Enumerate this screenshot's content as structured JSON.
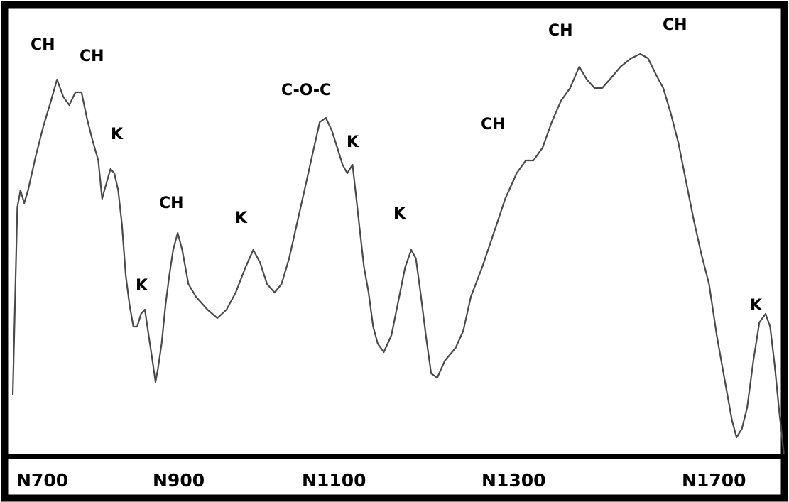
{
  "chart_data": {
    "type": "line",
    "title": "",
    "xlabel": "",
    "ylabel": "",
    "grid": false,
    "legend": "none",
    "x_ticks": [
      "N700",
      "N900",
      "N1100",
      "N1300",
      "N1700"
    ],
    "peak_labels": [
      "CH",
      "CH",
      "K",
      "K",
      "CH",
      "K",
      "C-O-C",
      "K",
      "K",
      "CH",
      "CH",
      "CH",
      "K"
    ],
    "line_color": "#4a4a4a",
    "series": [
      {
        "points": [
          [
            0.0,
            0.14
          ],
          [
            0.006,
            0.58
          ],
          [
            0.01,
            0.62
          ],
          [
            0.015,
            0.59
          ],
          [
            0.02,
            0.62
          ],
          [
            0.03,
            0.7
          ],
          [
            0.04,
            0.77
          ],
          [
            0.05,
            0.83
          ],
          [
            0.058,
            0.88
          ],
          [
            0.066,
            0.84
          ],
          [
            0.074,
            0.82
          ],
          [
            0.082,
            0.85
          ],
          [
            0.09,
            0.85
          ],
          [
            0.097,
            0.79
          ],
          [
            0.104,
            0.74
          ],
          [
            0.112,
            0.69
          ],
          [
            0.117,
            0.6
          ],
          [
            0.12,
            0.62
          ],
          [
            0.128,
            0.67
          ],
          [
            0.133,
            0.66
          ],
          [
            0.138,
            0.62
          ],
          [
            0.143,
            0.54
          ],
          [
            0.148,
            0.42
          ],
          [
            0.153,
            0.35
          ],
          [
            0.158,
            0.3
          ],
          [
            0.163,
            0.3
          ],
          [
            0.168,
            0.33
          ],
          [
            0.173,
            0.34
          ],
          [
            0.178,
            0.28
          ],
          [
            0.183,
            0.22
          ],
          [
            0.187,
            0.17
          ],
          [
            0.19,
            0.2
          ],
          [
            0.195,
            0.26
          ],
          [
            0.2,
            0.35
          ],
          [
            0.205,
            0.42
          ],
          [
            0.21,
            0.48
          ],
          [
            0.216,
            0.52
          ],
          [
            0.222,
            0.48
          ],
          [
            0.23,
            0.4
          ],
          [
            0.24,
            0.37
          ],
          [
            0.255,
            0.34
          ],
          [
            0.268,
            0.32
          ],
          [
            0.28,
            0.34
          ],
          [
            0.292,
            0.38
          ],
          [
            0.305,
            0.44
          ],
          [
            0.315,
            0.48
          ],
          [
            0.324,
            0.45
          ],
          [
            0.333,
            0.4
          ],
          [
            0.343,
            0.38
          ],
          [
            0.352,
            0.4
          ],
          [
            0.362,
            0.46
          ],
          [
            0.372,
            0.54
          ],
          [
            0.382,
            0.62
          ],
          [
            0.392,
            0.7
          ],
          [
            0.402,
            0.78
          ],
          [
            0.41,
            0.79
          ],
          [
            0.418,
            0.76
          ],
          [
            0.425,
            0.72
          ],
          [
            0.432,
            0.68
          ],
          [
            0.438,
            0.66
          ],
          [
            0.445,
            0.68
          ],
          [
            0.45,
            0.6
          ],
          [
            0.455,
            0.52
          ],
          [
            0.46,
            0.44
          ],
          [
            0.466,
            0.38
          ],
          [
            0.472,
            0.3
          ],
          [
            0.478,
            0.26
          ],
          [
            0.486,
            0.24
          ],
          [
            0.496,
            0.28
          ],
          [
            0.505,
            0.36
          ],
          [
            0.514,
            0.44
          ],
          [
            0.522,
            0.48
          ],
          [
            0.528,
            0.46
          ],
          [
            0.534,
            0.38
          ],
          [
            0.541,
            0.28
          ],
          [
            0.548,
            0.19
          ],
          [
            0.556,
            0.18
          ],
          [
            0.566,
            0.22
          ],
          [
            0.58,
            0.25
          ],
          [
            0.59,
            0.29
          ],
          [
            0.6,
            0.37
          ],
          [
            0.615,
            0.44
          ],
          [
            0.63,
            0.52
          ],
          [
            0.645,
            0.6
          ],
          [
            0.66,
            0.66
          ],
          [
            0.672,
            0.69
          ],
          [
            0.682,
            0.69
          ],
          [
            0.694,
            0.72
          ],
          [
            0.706,
            0.78
          ],
          [
            0.718,
            0.83
          ],
          [
            0.73,
            0.86
          ],
          [
            0.742,
            0.91
          ],
          [
            0.752,
            0.88
          ],
          [
            0.762,
            0.86
          ],
          [
            0.772,
            0.86
          ],
          [
            0.782,
            0.88
          ],
          [
            0.796,
            0.91
          ],
          [
            0.81,
            0.93
          ],
          [
            0.822,
            0.94
          ],
          [
            0.832,
            0.93
          ],
          [
            0.843,
            0.89
          ],
          [
            0.852,
            0.86
          ],
          [
            0.862,
            0.8
          ],
          [
            0.872,
            0.73
          ],
          [
            0.882,
            0.64
          ],
          [
            0.892,
            0.55
          ],
          [
            0.902,
            0.47
          ],
          [
            0.912,
            0.4
          ],
          [
            0.922,
            0.28
          ],
          [
            0.932,
            0.18
          ],
          [
            0.942,
            0.08
          ],
          [
            0.948,
            0.04
          ],
          [
            0.955,
            0.06
          ],
          [
            0.962,
            0.11
          ],
          [
            0.97,
            0.22
          ],
          [
            0.978,
            0.31
          ],
          [
            0.986,
            0.33
          ],
          [
            0.992,
            0.3
          ],
          [
            0.998,
            0.21
          ],
          [
            1.004,
            0.1
          ],
          [
            1.01,
            0.0
          ]
        ]
      }
    ]
  }
}
